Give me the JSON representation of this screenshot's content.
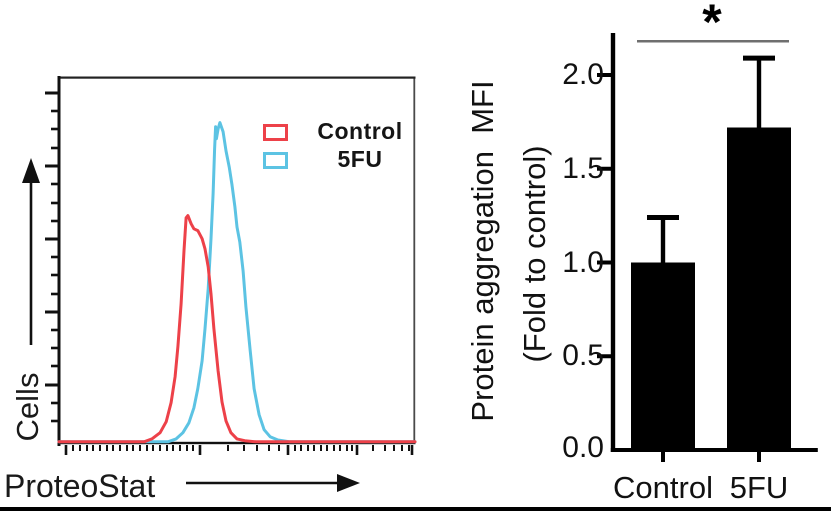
{
  "figure": {
    "description": "Two-panel figure: flow cytometry histogram of ProteoStat staining and bar chart of protein aggregation MFI",
    "bottom_rule_color": "#000000"
  },
  "left_panel": {
    "ylabel": "Cells",
    "xlabel": "ProteoStat",
    "legend": [
      {
        "label": "Control",
        "color": "#ed4149"
      },
      {
        "label": "5FU",
        "color": "#5cc3e3"
      }
    ]
  },
  "right_panel": {
    "ylabel_line1": "Protein aggregation  MFI",
    "ylabel_line2": "(Fold to control)",
    "ytick_labels": [
      "0.0",
      "0.5",
      "1.0",
      "1.5",
      "2.0"
    ],
    "categories": [
      "Control",
      "5FU"
    ],
    "significance_label": "*"
  },
  "chart_data": [
    {
      "type": "area",
      "title": "Flow cytometry histogram overlay",
      "xlabel": "ProteoStat",
      "ylabel": "Cells",
      "x_scale": "logicle-style, unlabeled ticks",
      "y_scale": "linear, unlabeled ticks",
      "legend_position": "top-right inside plot",
      "series": [
        {
          "name": "Control",
          "color": "#ed4149",
          "points_norm_x_heightfrac": [
            [
              0,
              0
            ],
            [
              0.239,
              0
            ],
            [
              0.261,
              0.008
            ],
            [
              0.284,
              0.025
            ],
            [
              0.301,
              0.055
            ],
            [
              0.315,
              0.107
            ],
            [
              0.326,
              0.178
            ],
            [
              0.334,
              0.26
            ],
            [
              0.343,
              0.377
            ],
            [
              0.351,
              0.522
            ],
            [
              0.357,
              0.612
            ],
            [
              0.362,
              0.618
            ],
            [
              0.371,
              0.596
            ],
            [
              0.379,
              0.582
            ],
            [
              0.39,
              0.577
            ],
            [
              0.402,
              0.555
            ],
            [
              0.41,
              0.527
            ],
            [
              0.419,
              0.478
            ],
            [
              0.427,
              0.404
            ],
            [
              0.435,
              0.309
            ],
            [
              0.447,
              0.194
            ],
            [
              0.458,
              0.109
            ],
            [
              0.469,
              0.057
            ],
            [
              0.483,
              0.025
            ],
            [
              0.5,
              0.008
            ],
            [
              0.522,
              0.003
            ],
            [
              0.553,
              0
            ],
            [
              1,
              0
            ]
          ]
        },
        {
          "name": "5FU",
          "color": "#5cc3e3",
          "points_norm_x_heightfrac": [
            [
              0,
              0
            ],
            [
              0.306,
              0
            ],
            [
              0.329,
              0.008
            ],
            [
              0.348,
              0.025
            ],
            [
              0.365,
              0.052
            ],
            [
              0.379,
              0.093
            ],
            [
              0.39,
              0.145
            ],
            [
              0.402,
              0.221
            ],
            [
              0.41,
              0.309
            ],
            [
              0.419,
              0.418
            ],
            [
              0.427,
              0.555
            ],
            [
              0.433,
              0.678
            ],
            [
              0.437,
              0.8
            ],
            [
              0.44,
              0.861
            ],
            [
              0.442,
              0.828
            ],
            [
              0.447,
              0.855
            ],
            [
              0.452,
              0.872
            ],
            [
              0.461,
              0.847
            ],
            [
              0.469,
              0.795
            ],
            [
              0.478,
              0.751
            ],
            [
              0.486,
              0.702
            ],
            [
              0.494,
              0.642
            ],
            [
              0.5,
              0.587
            ],
            [
              0.508,
              0.546
            ],
            [
              0.517,
              0.467
            ],
            [
              0.525,
              0.369
            ],
            [
              0.537,
              0.249
            ],
            [
              0.548,
              0.145
            ],
            [
              0.562,
              0.074
            ],
            [
              0.576,
              0.033
            ],
            [
              0.593,
              0.014
            ],
            [
              0.615,
              0.005
            ],
            [
              0.649,
              0
            ],
            [
              1,
              0
            ]
          ]
        }
      ]
    },
    {
      "type": "bar",
      "categories": [
        "Control",
        "5FU"
      ],
      "values": [
        1.0,
        1.72
      ],
      "errors_plus": [
        0.24,
        0.37
      ],
      "title": "",
      "xlabel": "",
      "ylabel": "Protein aggregation  MFI (Fold to control)",
      "yticks": [
        0.0,
        0.5,
        1.0,
        1.5,
        2.0
      ],
      "ylim": [
        0,
        2.22
      ],
      "grid": false,
      "bar_color": "#000000",
      "error_bar_color": "#000000",
      "significance": {
        "label": "*",
        "between": [
          "Control",
          "5FU"
        ],
        "line_color": "#6f6f6f"
      }
    }
  ]
}
